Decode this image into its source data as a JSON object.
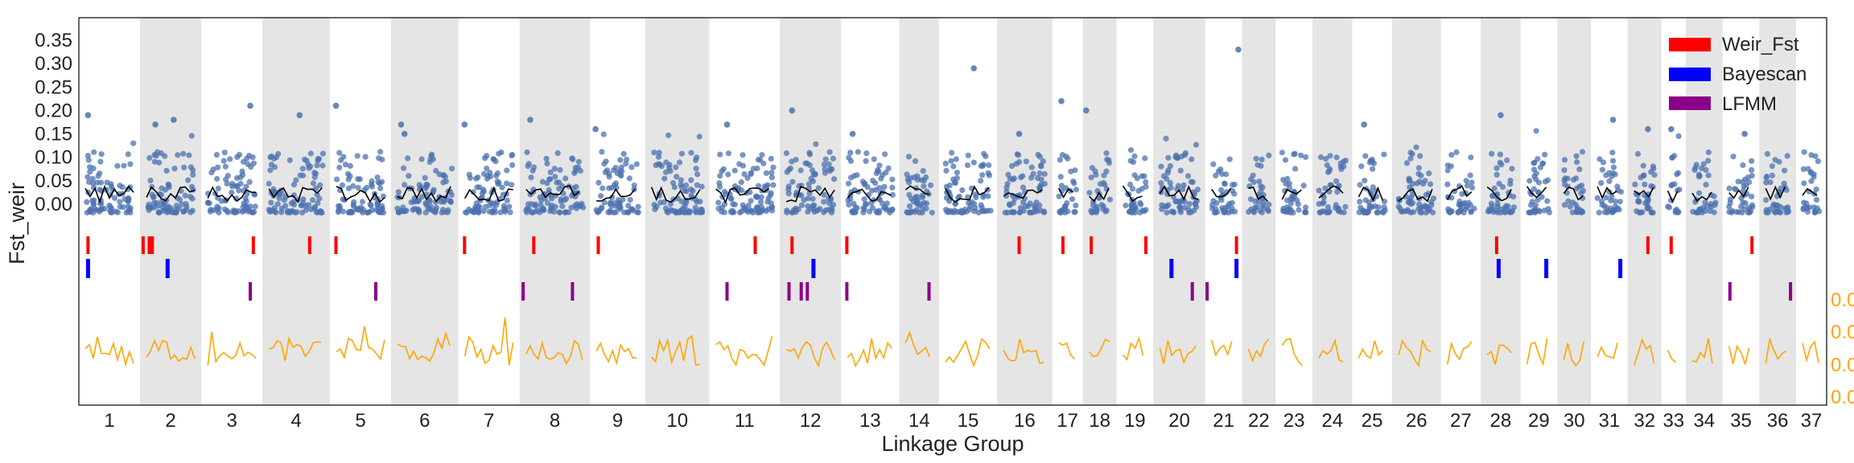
{
  "chart_data": {
    "type": "scatter",
    "title": "",
    "xlabel": "Linkage Group",
    "ylabel": "Fst_weir",
    "ylim": [
      -0.03,
      0.38
    ],
    "yticks": [
      "0.00",
      "0.05",
      "0.10",
      "0.15",
      "0.20",
      "0.25",
      "0.30",
      "0.35"
    ],
    "right_axis_ticks": [
      "0.0",
      "0.0",
      "0.0",
      "0.0"
    ],
    "grid": false,
    "legend_position": "top-right",
    "colors": {
      "points": "#4c72b0",
      "smooth_line": "#000000",
      "weir_fst": "#ff0000",
      "bayescan": "#0000ff",
      "lfmm": "#8b008b",
      "right_trace": "#ffa500",
      "band": "#e5e5e5"
    },
    "linkage_groups": [
      {
        "label": "1",
        "size": 1.0
      },
      {
        "label": "2",
        "size": 1.0
      },
      {
        "label": "3",
        "size": 1.0
      },
      {
        "label": "4",
        "size": 1.1
      },
      {
        "label": "5",
        "size": 1.0
      },
      {
        "label": "6",
        "size": 1.1
      },
      {
        "label": "7",
        "size": 1.0
      },
      {
        "label": "8",
        "size": 1.15
      },
      {
        "label": "9",
        "size": 0.9
      },
      {
        "label": "10",
        "size": 1.05
      },
      {
        "label": "11",
        "size": 1.15
      },
      {
        "label": "12",
        "size": 1.0
      },
      {
        "label": "13",
        "size": 0.95
      },
      {
        "label": "14",
        "size": 0.65
      },
      {
        "label": "15",
        "size": 0.95
      },
      {
        "label": "16",
        "size": 0.9
      },
      {
        "label": "17",
        "size": 0.5
      },
      {
        "label": "18",
        "size": 0.55
      },
      {
        "label": "19",
        "size": 0.6
      },
      {
        "label": "20",
        "size": 0.85
      },
      {
        "label": "21",
        "size": 0.6
      },
      {
        "label": "22",
        "size": 0.55
      },
      {
        "label": "23",
        "size": 0.6
      },
      {
        "label": "24",
        "size": 0.65
      },
      {
        "label": "25",
        "size": 0.65
      },
      {
        "label": "26",
        "size": 0.8
      },
      {
        "label": "27",
        "size": 0.65
      },
      {
        "label": "28",
        "size": 0.65
      },
      {
        "label": "29",
        "size": 0.6
      },
      {
        "label": "30",
        "size": 0.55
      },
      {
        "label": "31",
        "size": 0.6
      },
      {
        "label": "32",
        "size": 0.55
      },
      {
        "label": "33",
        "size": 0.4
      },
      {
        "label": "34",
        "size": 0.6
      },
      {
        "label": "35",
        "size": 0.6
      },
      {
        "label": "36",
        "size": 0.6
      },
      {
        "label": "37",
        "size": 0.5
      }
    ],
    "series": [
      {
        "name": "Weir_Fst",
        "marker": "tick"
      },
      {
        "name": "Bayescan",
        "marker": "tick"
      },
      {
        "name": "LFMM",
        "marker": "tick"
      }
    ],
    "outlier_points": [
      {
        "lg": 1,
        "pos": 0.15,
        "y": 0.19
      },
      {
        "lg": 2,
        "pos": 0.25,
        "y": 0.17
      },
      {
        "lg": 2,
        "pos": 0.55,
        "y": 0.18
      },
      {
        "lg": 3,
        "pos": 0.8,
        "y": 0.21
      },
      {
        "lg": 4,
        "pos": 0.55,
        "y": 0.19
      },
      {
        "lg": 5,
        "pos": 0.1,
        "y": 0.21
      },
      {
        "lg": 6,
        "pos": 0.2,
        "y": 0.15
      },
      {
        "lg": 6,
        "pos": 0.15,
        "y": 0.17
      },
      {
        "lg": 7,
        "pos": 0.1,
        "y": 0.17
      },
      {
        "lg": 8,
        "pos": 0.15,
        "y": 0.18
      },
      {
        "lg": 9,
        "pos": 0.1,
        "y": 0.16
      },
      {
        "lg": 11,
        "pos": 0.25,
        "y": 0.17
      },
      {
        "lg": 12,
        "pos": 0.2,
        "y": 0.2
      },
      {
        "lg": 13,
        "pos": 0.2,
        "y": 0.15
      },
      {
        "lg": 15,
        "pos": 0.6,
        "y": 0.29
      },
      {
        "lg": 16,
        "pos": 0.4,
        "y": 0.15
      },
      {
        "lg": 17,
        "pos": 0.3,
        "y": 0.22
      },
      {
        "lg": 18,
        "pos": 0.1,
        "y": 0.2
      },
      {
        "lg": 21,
        "pos": 0.9,
        "y": 0.33
      },
      {
        "lg": 25,
        "pos": 0.3,
        "y": 0.17
      },
      {
        "lg": 28,
        "pos": 0.5,
        "y": 0.19
      },
      {
        "lg": 31,
        "pos": 0.6,
        "y": 0.18
      },
      {
        "lg": 32,
        "pos": 0.6,
        "y": 0.16
      },
      {
        "lg": 33,
        "pos": 0.4,
        "y": 0.16
      },
      {
        "lg": 35,
        "pos": 0.6,
        "y": 0.15
      }
    ],
    "weir_fst_hits": [
      {
        "lg": 1,
        "pos": 0.15
      },
      {
        "lg": 2,
        "pos": 0.05
      },
      {
        "lg": 2,
        "pos": 0.15
      },
      {
        "lg": 2,
        "pos": 0.2
      },
      {
        "lg": 3,
        "pos": 0.85
      },
      {
        "lg": 4,
        "pos": 0.7
      },
      {
        "lg": 5,
        "pos": 0.1
      },
      {
        "lg": 7,
        "pos": 0.1
      },
      {
        "lg": 8,
        "pos": 0.2
      },
      {
        "lg": 9,
        "pos": 0.15
      },
      {
        "lg": 11,
        "pos": 0.65
      },
      {
        "lg": 12,
        "pos": 0.2
      },
      {
        "lg": 13,
        "pos": 0.1
      },
      {
        "lg": 16,
        "pos": 0.4
      },
      {
        "lg": 17,
        "pos": 0.35
      },
      {
        "lg": 18,
        "pos": 0.25
      },
      {
        "lg": 19,
        "pos": 0.8
      },
      {
        "lg": 21,
        "pos": 0.85
      },
      {
        "lg": 28,
        "pos": 0.4
      },
      {
        "lg": 32,
        "pos": 0.6
      },
      {
        "lg": 33,
        "pos": 0.4
      },
      {
        "lg": 35,
        "pos": 0.8
      }
    ],
    "bayescan_hits": [
      {
        "lg": 1,
        "pos": 0.15
      },
      {
        "lg": 2,
        "pos": 0.45
      },
      {
        "lg": 12,
        "pos": 0.55
      },
      {
        "lg": 20,
        "pos": 0.35
      },
      {
        "lg": 21,
        "pos": 0.85
      },
      {
        "lg": 28,
        "pos": 0.45
      },
      {
        "lg": 29,
        "pos": 0.7
      },
      {
        "lg": 31,
        "pos": 0.8
      }
    ],
    "lfmm_hits": [
      {
        "lg": 3,
        "pos": 0.8
      },
      {
        "lg": 5,
        "pos": 0.75
      },
      {
        "lg": 8,
        "pos": 0.05
      },
      {
        "lg": 8,
        "pos": 0.75
      },
      {
        "lg": 11,
        "pos": 0.25
      },
      {
        "lg": 12,
        "pos": 0.15
      },
      {
        "lg": 12,
        "pos": 0.35
      },
      {
        "lg": 12,
        "pos": 0.45
      },
      {
        "lg": 13,
        "pos": 0.1
      },
      {
        "lg": 14,
        "pos": 0.75
      },
      {
        "lg": 20,
        "pos": 0.75
      },
      {
        "lg": 21,
        "pos": 0.05
      },
      {
        "lg": 35,
        "pos": 0.2
      },
      {
        "lg": 36,
        "pos": 0.85
      }
    ]
  }
}
